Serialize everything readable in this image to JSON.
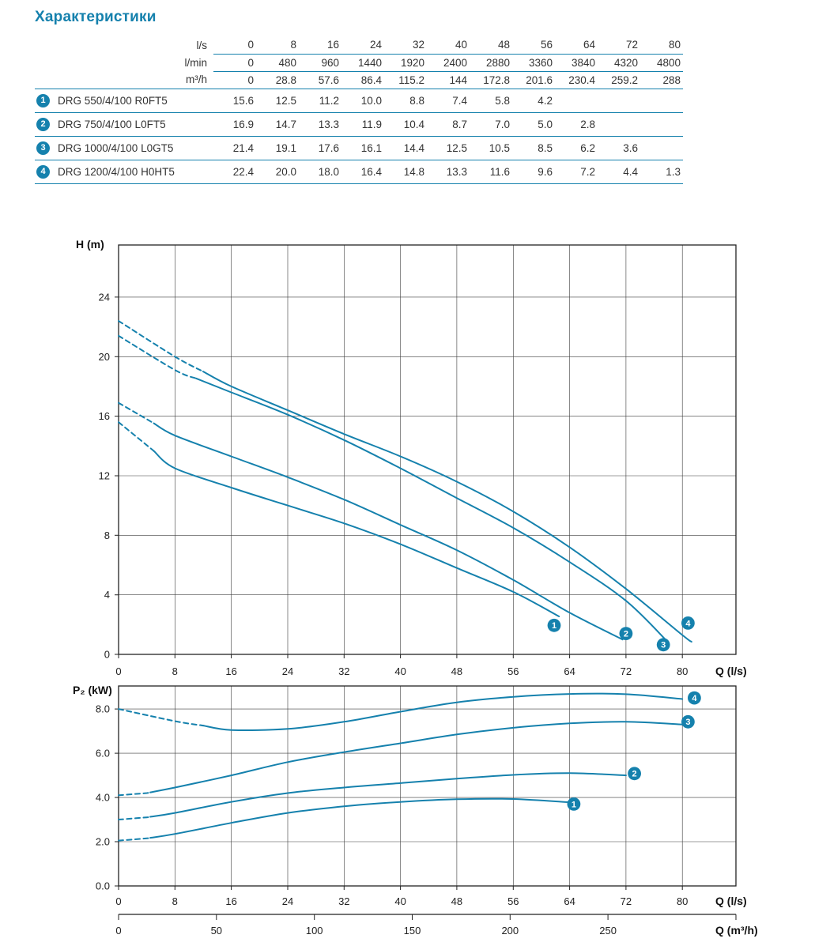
{
  "page_title": "Характеристики",
  "colors": {
    "accent": "#1581ad",
    "grid": "#3d3d3d",
    "axis": "#222222",
    "text": "#333333"
  },
  "table": {
    "unit_rows": [
      {
        "label": "l/s",
        "values": [
          "0",
          "8",
          "16",
          "24",
          "32",
          "40",
          "48",
          "56",
          "64",
          "72",
          "80"
        ]
      },
      {
        "label": "l/min",
        "values": [
          "0",
          "480",
          "960",
          "1440",
          "1920",
          "2400",
          "2880",
          "3360",
          "3840",
          "4320",
          "4800"
        ]
      },
      {
        "label": "m³/h",
        "values": [
          "0",
          "28.8",
          "57.6",
          "86.4",
          "115.2",
          "144",
          "172.8",
          "201.6",
          "230.4",
          "259.2",
          "288"
        ]
      }
    ],
    "pump_rows": [
      {
        "num": "1",
        "model": "DRG 550/4/100 R0FT5",
        "values": [
          "15.6",
          "12.5",
          "11.2",
          "10.0",
          "8.8",
          "7.4",
          "5.8",
          "4.2",
          "",
          "",
          ""
        ]
      },
      {
        "num": "2",
        "model": "DRG 750/4/100 L0FT5",
        "values": [
          "16.9",
          "14.7",
          "13.3",
          "11.9",
          "10.4",
          "8.7",
          "7.0",
          "5.0",
          "2.8",
          "",
          ""
        ]
      },
      {
        "num": "3",
        "model": "DRG 1000/4/100 L0GT5",
        "values": [
          "21.4",
          "19.1",
          "17.6",
          "16.1",
          "14.4",
          "12.5",
          "10.5",
          "8.5",
          "6.2",
          "3.6",
          ""
        ]
      },
      {
        "num": "4",
        "model": "DRG 1200/4/100 H0HT5",
        "values": [
          "22.4",
          "20.0",
          "18.0",
          "16.4",
          "14.8",
          "13.3",
          "11.6",
          "9.6",
          "7.2",
          "4.4",
          "1.3"
        ]
      }
    ]
  },
  "chart_data": [
    {
      "type": "line",
      "title": "",
      "xlabel": "Q (l/s)",
      "ylabel": "H (m)",
      "xlim": [
        0,
        87.6
      ],
      "ylim": [
        0,
        27.5
      ],
      "xticks": [
        0,
        8,
        16,
        24,
        32,
        40,
        48,
        56,
        64,
        72,
        80
      ],
      "yticks": [
        0,
        4,
        8,
        12,
        16,
        20,
        24
      ],
      "grid": true,
      "legend": "numbered badges at curve ends",
      "series": [
        {
          "name": "1",
          "model": "DRG 550/4/100 R0FT5",
          "dash_until": 5,
          "x": [
            0,
            8,
            16,
            24,
            32,
            40,
            48,
            56,
            62.5
          ],
          "y": [
            15.6,
            12.5,
            11.2,
            10.0,
            8.8,
            7.4,
            5.8,
            4.2,
            2.55
          ],
          "badge": {
            "x": 61.8,
            "y": 1.95
          }
        },
        {
          "name": "2",
          "model": "DRG 750/4/100 L0FT5",
          "dash_until": 5,
          "x": [
            0,
            8,
            16,
            24,
            32,
            40,
            48,
            56,
            64,
            71.5
          ],
          "y": [
            16.9,
            14.7,
            13.3,
            11.9,
            10.4,
            8.7,
            7.0,
            5.0,
            2.8,
            1.0
          ],
          "badge": {
            "x": 72.0,
            "y": 1.4
          }
        },
        {
          "name": "3",
          "model": "DRG 1000/4/100 L0GT5",
          "dash_until": 11,
          "x": [
            0,
            8,
            16,
            24,
            32,
            40,
            48,
            56,
            64,
            72,
            78
          ],
          "y": [
            21.4,
            19.1,
            17.6,
            16.1,
            14.4,
            12.5,
            10.5,
            8.5,
            6.2,
            3.6,
            0.8
          ],
          "badge": {
            "x": 77.3,
            "y": 0.65
          }
        },
        {
          "name": "4",
          "model": "DRG 1200/4/100 H0HT5",
          "dash_until": 12,
          "x": [
            0,
            8,
            16,
            24,
            32,
            40,
            48,
            56,
            64,
            72,
            80,
            81.3
          ],
          "y": [
            22.4,
            20.0,
            18.0,
            16.4,
            14.8,
            13.3,
            11.6,
            9.6,
            7.2,
            4.4,
            1.3,
            0.85
          ],
          "badge": {
            "x": 80.8,
            "y": 2.1
          }
        }
      ]
    },
    {
      "type": "line",
      "title": "",
      "xlabel": "Q (l/s)",
      "ylabel": "P₂ (kW)",
      "xlim": [
        0,
        87.6
      ],
      "ylim": [
        0,
        9.04
      ],
      "xticks": [
        0,
        8,
        16,
        24,
        32,
        40,
        48,
        56,
        64,
        72,
        80
      ],
      "yticks": [
        0,
        2,
        4,
        6,
        8
      ],
      "ytick_labels": [
        "0.0",
        "2.0",
        "4.0",
        "6.0",
        "8.0"
      ],
      "grid": true,
      "x2": {
        "label": "Q (m³/h)",
        "ticks": [
          0,
          50,
          100,
          150,
          200,
          250
        ],
        "unit_scale": 3.6
      },
      "series": [
        {
          "name": "1",
          "model": "DRG 550/4/100 R0FT5",
          "dash_until": 4.5,
          "x": [
            0,
            4,
            8,
            16,
            24,
            32,
            40,
            48,
            56,
            64
          ],
          "y": [
            2.05,
            2.15,
            2.35,
            2.85,
            3.3,
            3.6,
            3.8,
            3.92,
            3.93,
            3.78
          ],
          "badge": {
            "x": 64.6,
            "y": 3.7
          }
        },
        {
          "name": "2",
          "model": "DRG 750/4/100 L0FT5",
          "dash_until": 4.5,
          "x": [
            0,
            4,
            8,
            16,
            24,
            32,
            40,
            48,
            56,
            64,
            72
          ],
          "y": [
            3.0,
            3.1,
            3.3,
            3.8,
            4.2,
            4.45,
            4.65,
            4.85,
            5.02,
            5.1,
            5.0
          ],
          "badge": {
            "x": 73.2,
            "y": 5.08
          }
        },
        {
          "name": "3",
          "model": "DRG 1000/4/100 L0GT5",
          "dash_until": 4.5,
          "x": [
            0,
            4,
            8,
            16,
            24,
            32,
            40,
            48,
            56,
            64,
            72,
            80
          ],
          "y": [
            4.1,
            4.2,
            4.45,
            5.0,
            5.6,
            6.05,
            6.45,
            6.85,
            7.15,
            7.35,
            7.42,
            7.3
          ],
          "badge": {
            "x": 80.8,
            "y": 7.42
          }
        },
        {
          "name": "4",
          "model": "DRG 1200/4/100 H0HT5",
          "dash_until": 12,
          "x": [
            0,
            8,
            16,
            24,
            32,
            40,
            48,
            56,
            64,
            72,
            80
          ],
          "y": [
            8.0,
            7.45,
            7.05,
            7.1,
            7.42,
            7.88,
            8.3,
            8.55,
            8.68,
            8.67,
            8.45
          ],
          "badge": {
            "x": 81.7,
            "y": 8.5
          }
        }
      ]
    }
  ]
}
